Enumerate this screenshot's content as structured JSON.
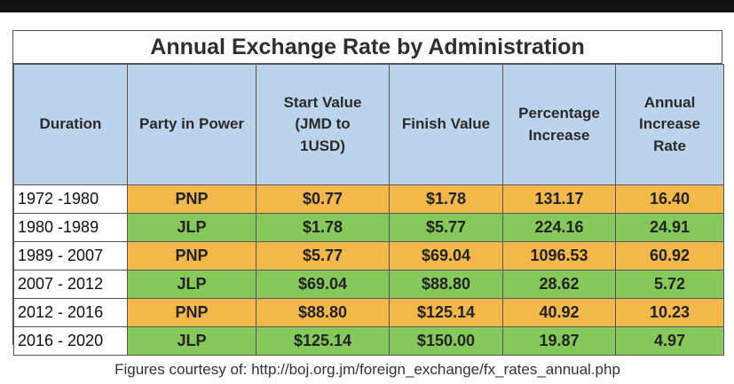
{
  "title": "Annual Exchange Rate by Administration",
  "headers": [
    "Duration",
    "Party in Power",
    "Start Value (JMD to 1USD)",
    "Finish Value",
    "Percentage Increase",
    "Annual Increase Rate"
  ],
  "rows": [
    {
      "duration": "1972 -1980",
      "party": "PNP",
      "start": "$0.77",
      "finish": "$1.78",
      "pct": "131.17",
      "annual": "16.40"
    },
    {
      "duration": "1980 -1989",
      "party": "JLP",
      "start": "$1.78",
      "finish": "$5.77",
      "pct": "224.16",
      "annual": "24.91"
    },
    {
      "duration": "1989 - 2007",
      "party": "PNP",
      "start": "$5.77",
      "finish": "$69.04",
      "pct": "1096.53",
      "annual": "60.92"
    },
    {
      "duration": "2007 - 2012",
      "party": "JLP",
      "start": "$69.04",
      "finish": "$88.80",
      "pct": "28.62",
      "annual": "5.72"
    },
    {
      "duration": "2012 - 2016",
      "party": "PNP",
      "start": "$88.80",
      "finish": "$125.14",
      "pct": "40.92",
      "annual": "10.23"
    },
    {
      "duration": "2016 - 2020",
      "party": "JLP",
      "start": "$125.14",
      "finish": "$150.00",
      "pct": "19.87",
      "annual": "4.97"
    }
  ],
  "footer": "Figures courtesy of: http://boj.org.jm/foreign_exchange/fx_rates_annual.php",
  "colors": {
    "pnp": "#f3b84a",
    "jlp": "#86c95a",
    "header": "#bcd3ec"
  }
}
